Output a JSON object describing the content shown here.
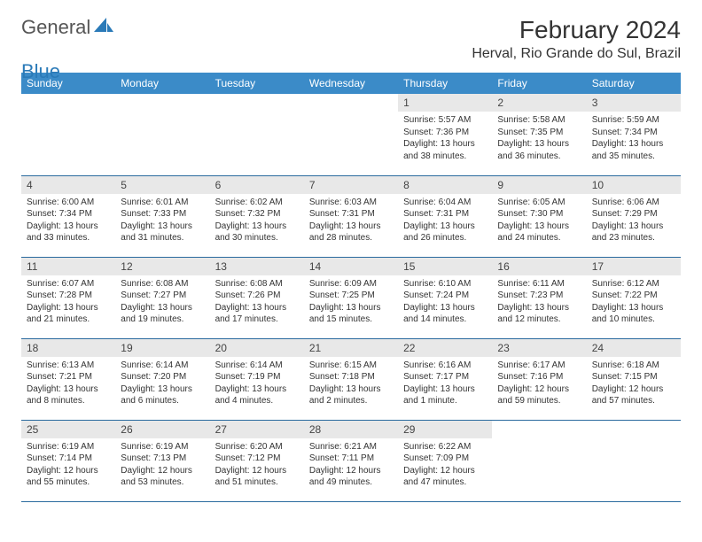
{
  "logo": {
    "text_gray": "General",
    "text_blue": "Blue"
  },
  "header": {
    "month_title": "February 2024",
    "location": "Herval, Rio Grande do Sul, Brazil"
  },
  "colors": {
    "header_bg": "#3b8bc8",
    "row_divider": "#2a6a9e",
    "daynum_bg": "#e8e8e8",
    "logo_blue": "#2a7ab8"
  },
  "weekdays": [
    "Sunday",
    "Monday",
    "Tuesday",
    "Wednesday",
    "Thursday",
    "Friday",
    "Saturday"
  ],
  "weeks": [
    [
      null,
      null,
      null,
      null,
      {
        "n": "1",
        "sr": "Sunrise: 5:57 AM",
        "ss": "Sunset: 7:36 PM",
        "dl": "Daylight: 13 hours and 38 minutes."
      },
      {
        "n": "2",
        "sr": "Sunrise: 5:58 AM",
        "ss": "Sunset: 7:35 PM",
        "dl": "Daylight: 13 hours and 36 minutes."
      },
      {
        "n": "3",
        "sr": "Sunrise: 5:59 AM",
        "ss": "Sunset: 7:34 PM",
        "dl": "Daylight: 13 hours and 35 minutes."
      }
    ],
    [
      {
        "n": "4",
        "sr": "Sunrise: 6:00 AM",
        "ss": "Sunset: 7:34 PM",
        "dl": "Daylight: 13 hours and 33 minutes."
      },
      {
        "n": "5",
        "sr": "Sunrise: 6:01 AM",
        "ss": "Sunset: 7:33 PM",
        "dl": "Daylight: 13 hours and 31 minutes."
      },
      {
        "n": "6",
        "sr": "Sunrise: 6:02 AM",
        "ss": "Sunset: 7:32 PM",
        "dl": "Daylight: 13 hours and 30 minutes."
      },
      {
        "n": "7",
        "sr": "Sunrise: 6:03 AM",
        "ss": "Sunset: 7:31 PM",
        "dl": "Daylight: 13 hours and 28 minutes."
      },
      {
        "n": "8",
        "sr": "Sunrise: 6:04 AM",
        "ss": "Sunset: 7:31 PM",
        "dl": "Daylight: 13 hours and 26 minutes."
      },
      {
        "n": "9",
        "sr": "Sunrise: 6:05 AM",
        "ss": "Sunset: 7:30 PM",
        "dl": "Daylight: 13 hours and 24 minutes."
      },
      {
        "n": "10",
        "sr": "Sunrise: 6:06 AM",
        "ss": "Sunset: 7:29 PM",
        "dl": "Daylight: 13 hours and 23 minutes."
      }
    ],
    [
      {
        "n": "11",
        "sr": "Sunrise: 6:07 AM",
        "ss": "Sunset: 7:28 PM",
        "dl": "Daylight: 13 hours and 21 minutes."
      },
      {
        "n": "12",
        "sr": "Sunrise: 6:08 AM",
        "ss": "Sunset: 7:27 PM",
        "dl": "Daylight: 13 hours and 19 minutes."
      },
      {
        "n": "13",
        "sr": "Sunrise: 6:08 AM",
        "ss": "Sunset: 7:26 PM",
        "dl": "Daylight: 13 hours and 17 minutes."
      },
      {
        "n": "14",
        "sr": "Sunrise: 6:09 AM",
        "ss": "Sunset: 7:25 PM",
        "dl": "Daylight: 13 hours and 15 minutes."
      },
      {
        "n": "15",
        "sr": "Sunrise: 6:10 AM",
        "ss": "Sunset: 7:24 PM",
        "dl": "Daylight: 13 hours and 14 minutes."
      },
      {
        "n": "16",
        "sr": "Sunrise: 6:11 AM",
        "ss": "Sunset: 7:23 PM",
        "dl": "Daylight: 13 hours and 12 minutes."
      },
      {
        "n": "17",
        "sr": "Sunrise: 6:12 AM",
        "ss": "Sunset: 7:22 PM",
        "dl": "Daylight: 13 hours and 10 minutes."
      }
    ],
    [
      {
        "n": "18",
        "sr": "Sunrise: 6:13 AM",
        "ss": "Sunset: 7:21 PM",
        "dl": "Daylight: 13 hours and 8 minutes."
      },
      {
        "n": "19",
        "sr": "Sunrise: 6:14 AM",
        "ss": "Sunset: 7:20 PM",
        "dl": "Daylight: 13 hours and 6 minutes."
      },
      {
        "n": "20",
        "sr": "Sunrise: 6:14 AM",
        "ss": "Sunset: 7:19 PM",
        "dl": "Daylight: 13 hours and 4 minutes."
      },
      {
        "n": "21",
        "sr": "Sunrise: 6:15 AM",
        "ss": "Sunset: 7:18 PM",
        "dl": "Daylight: 13 hours and 2 minutes."
      },
      {
        "n": "22",
        "sr": "Sunrise: 6:16 AM",
        "ss": "Sunset: 7:17 PM",
        "dl": "Daylight: 13 hours and 1 minute."
      },
      {
        "n": "23",
        "sr": "Sunrise: 6:17 AM",
        "ss": "Sunset: 7:16 PM",
        "dl": "Daylight: 12 hours and 59 minutes."
      },
      {
        "n": "24",
        "sr": "Sunrise: 6:18 AM",
        "ss": "Sunset: 7:15 PM",
        "dl": "Daylight: 12 hours and 57 minutes."
      }
    ],
    [
      {
        "n": "25",
        "sr": "Sunrise: 6:19 AM",
        "ss": "Sunset: 7:14 PM",
        "dl": "Daylight: 12 hours and 55 minutes."
      },
      {
        "n": "26",
        "sr": "Sunrise: 6:19 AM",
        "ss": "Sunset: 7:13 PM",
        "dl": "Daylight: 12 hours and 53 minutes."
      },
      {
        "n": "27",
        "sr": "Sunrise: 6:20 AM",
        "ss": "Sunset: 7:12 PM",
        "dl": "Daylight: 12 hours and 51 minutes."
      },
      {
        "n": "28",
        "sr": "Sunrise: 6:21 AM",
        "ss": "Sunset: 7:11 PM",
        "dl": "Daylight: 12 hours and 49 minutes."
      },
      {
        "n": "29",
        "sr": "Sunrise: 6:22 AM",
        "ss": "Sunset: 7:09 PM",
        "dl": "Daylight: 12 hours and 47 minutes."
      },
      null,
      null
    ]
  ]
}
